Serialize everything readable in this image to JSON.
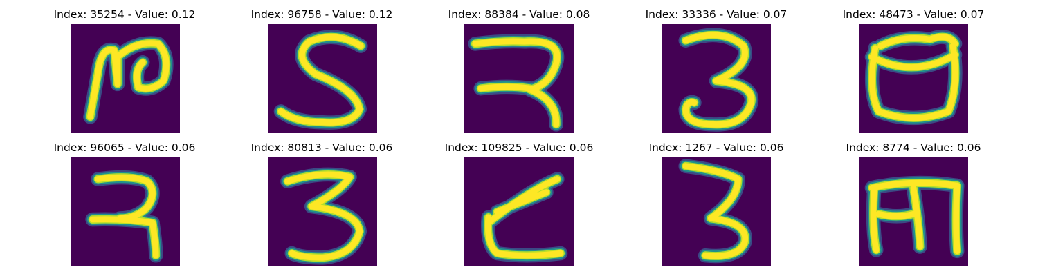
{
  "colors": {
    "background_cell": "#440154",
    "stroke_mid": "#21918c",
    "stroke_edge": "#3b528b",
    "stroke_core": "#fde725",
    "stroke_inner": "#b5de2b"
  },
  "panels": [
    {
      "title": "Index: 35254 - Value: 0.12",
      "glyph": "devanagari-ra-loop"
    },
    {
      "title": "Index: 96758 - Value: 0.12",
      "glyph": "digit-five-like"
    },
    {
      "title": "Index: 88384 - Value: 0.08",
      "glyph": "devanagari-ra-open"
    },
    {
      "title": "Index: 33336 - Value: 0.07",
      "glyph": "digit-three-loop"
    },
    {
      "title": "Index: 48473 - Value: 0.07",
      "glyph": "cup-shape"
    },
    {
      "title": "Index: 96065 - Value: 0.06",
      "glyph": "devanagari-ra-heavy"
    },
    {
      "title": "Index: 80813 - Value: 0.06",
      "glyph": "digit-three-bold"
    },
    {
      "title": "Index: 109825 - Value: 0.06",
      "glyph": "angled-stroke"
    },
    {
      "title": "Index: 1267 - Value: 0.06",
      "glyph": "digit-three-thin"
    },
    {
      "title": "Index: 8774 - Value: 0.06",
      "glyph": "devanagari-ma-like"
    }
  ]
}
